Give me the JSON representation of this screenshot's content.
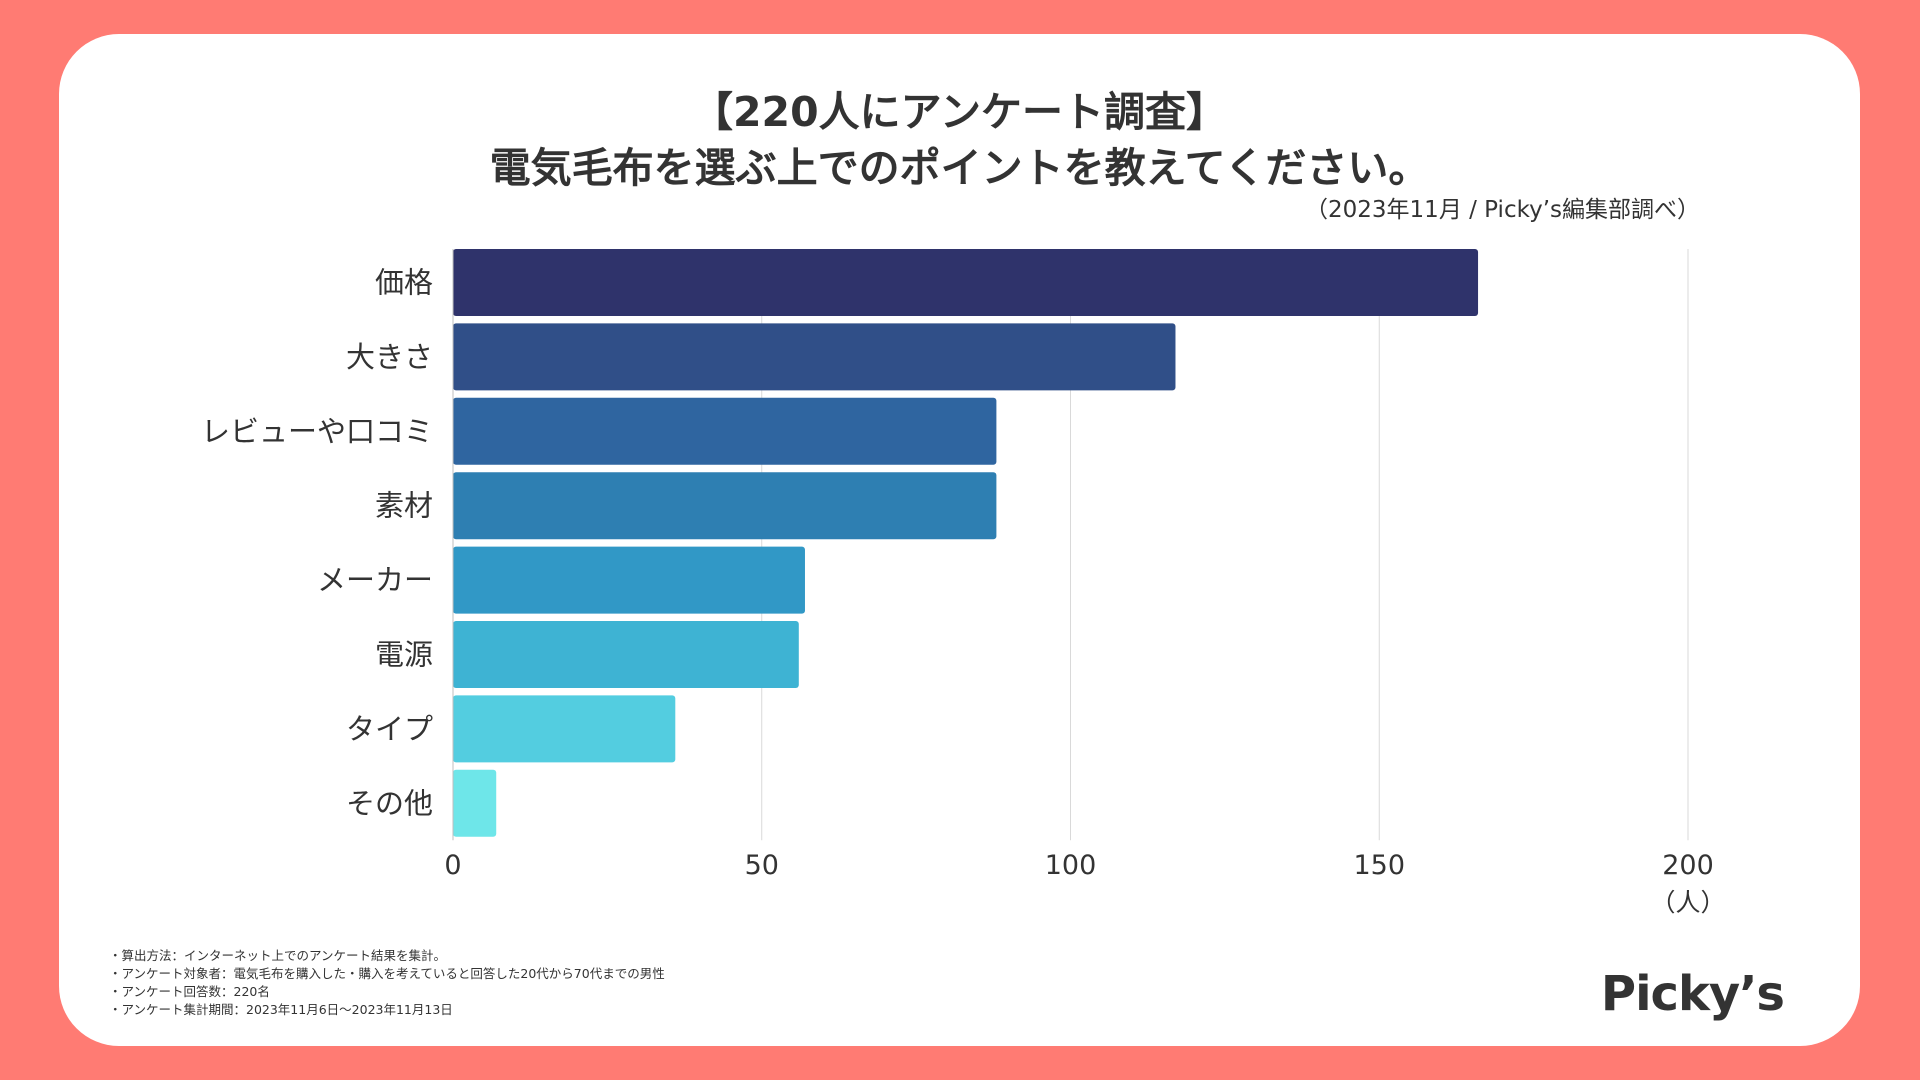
{
  "title": {
    "line1": "【220人にアンケート調査】",
    "line2": "電気毛布を選ぶ上でのポイントを教えてください。"
  },
  "source": "（2023年11月 / Picky’s編集部調べ）",
  "notes": [
    "・算出方法：インターネット上でのアンケート結果を集計。",
    "・アンケート対象者：電気毛布を購入した・購入を考えていると回答した20代から70代までの男性",
    "・アンケート回答数：220名",
    "・アンケート集計期間：2023年11月6日〜2023年11月13日"
  ],
  "logo": "Picky’s",
  "colors": {
    "background": "#ff7b73",
    "card": "#ffffff",
    "text": "#333333",
    "grid": "#d9d9d9"
  },
  "chart_data": {
    "type": "bar",
    "orientation": "horizontal",
    "title": "電気毛布を選ぶ上でのポイントを教えてください。",
    "categories": [
      "価格",
      "大きさ",
      "レビューや口コミ",
      "素材",
      "メーカー",
      "電源",
      "タイプ",
      "その他"
    ],
    "values": [
      166,
      117,
      88,
      88,
      57,
      56,
      36,
      7
    ],
    "bar_colors": [
      "#2f336b",
      "#304f88",
      "#2f65a0",
      "#2e7fb2",
      "#3198c6",
      "#3eb3d3",
      "#53cde0",
      "#6ee6e9"
    ],
    "xlim": [
      0,
      200
    ],
    "xticks": [
      "0",
      "50",
      "100",
      "150",
      "200"
    ],
    "xunit": "（人）",
    "grid": true
  }
}
